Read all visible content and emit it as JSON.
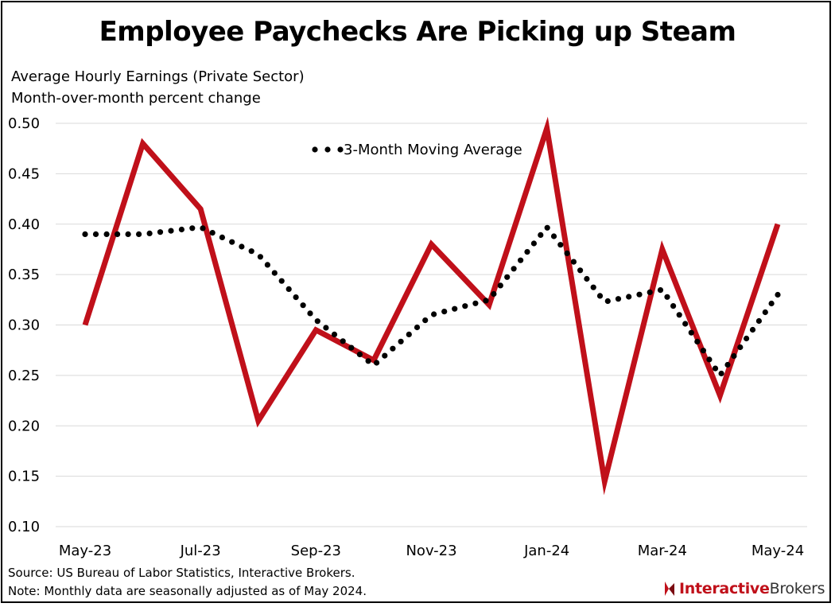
{
  "title": "Employee Paychecks Are Picking up Steam",
  "subtitle_line1": "Average Hourly Earnings (Private Sector)",
  "subtitle_line2": "Month-over-month percent change",
  "footnote_source": "Source: US Bureau of Labor Statistics, Interactive Brokers.",
  "footnote_note": "Note: Monthly data are seasonally adjusted as of May 2024.",
  "logo": {
    "part1": "Interactive",
    "part2": "Brokers"
  },
  "colors": {
    "line": "#c0101a",
    "moving_average": "#000000",
    "grid": "#d9d9d9"
  },
  "chart_data": {
    "type": "line",
    "x": [
      "May-23",
      "Jun-23",
      "Jul-23",
      "Aug-23",
      "Sep-23",
      "Oct-23",
      "Nov-23",
      "Dec-23",
      "Jan-24",
      "Feb-24",
      "Mar-24",
      "Apr-24",
      "May-24"
    ],
    "x_tick_labels": [
      "May-23",
      "Jul-23",
      "Sep-23",
      "Nov-23",
      "Jan-24",
      "Mar-24",
      "May-24"
    ],
    "series": [
      {
        "name": "",
        "style": "solid",
        "values": [
          0.3,
          0.48,
          0.415,
          0.205,
          0.295,
          0.265,
          0.38,
          0.32,
          0.495,
          0.145,
          0.375,
          0.23,
          0.4
        ]
      },
      {
        "name": "3-Month Moving Average",
        "style": "dotted",
        "values": [
          0.39,
          0.39,
          0.397,
          0.37,
          0.305,
          0.26,
          0.31,
          0.325,
          0.397,
          0.323,
          0.335,
          0.25,
          0.33
        ]
      }
    ],
    "ylim": [
      0.1,
      0.5
    ],
    "y_ticks": [
      "0.10",
      "0.15",
      "0.20",
      "0.25",
      "0.30",
      "0.35",
      "0.40",
      "0.45",
      "0.50"
    ],
    "grid": "horizontal",
    "legend_position": "top-center"
  }
}
